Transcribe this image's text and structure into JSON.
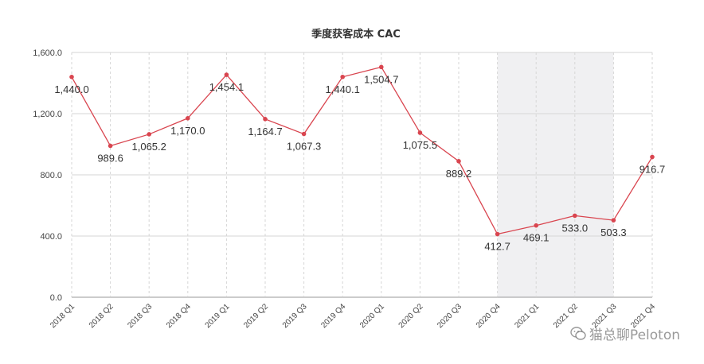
{
  "watermark": {
    "text": "猫总聊Peloton",
    "icon": "wechat-icon"
  },
  "colors": {
    "line": "#d9454f",
    "band": "#f0f0f2",
    "grid": "#d6d6d6",
    "axis": "#999999"
  },
  "chart_data": {
    "type": "line",
    "title": "季度获客成本 CAC",
    "xlabel": "",
    "ylabel": "",
    "ylim": [
      0,
      1600
    ],
    "yticks": [
      "0.0",
      "400.0",
      "800.0",
      "1,200.0",
      "1,600.0"
    ],
    "ytick_values": [
      0,
      400,
      800,
      1200,
      1600
    ],
    "grid": true,
    "categories": [
      "2018 Q1",
      "2018 Q2",
      "2018 Q3",
      "2018 Q4",
      "2019 Q1",
      "2019 Q2",
      "2019 Q3",
      "2019 Q4",
      "2020 Q1",
      "2020 Q2",
      "2020 Q3",
      "2020 Q4",
      "2021 Q1",
      "2021 Q2",
      "2021 Q3",
      "2021 Q4"
    ],
    "series": [
      {
        "values": [
          1440.0,
          989.6,
          1065.2,
          1170.0,
          1454.1,
          1164.7,
          1067.3,
          1440.1,
          1504.7,
          1075.5,
          889.2,
          412.7,
          469.1,
          533.0,
          503.3,
          916.7
        ],
        "labels": [
          "1,440.0",
          "989.6",
          "1,065.2",
          "1,170.0",
          "1,454.1",
          "1,164.7",
          "1,067.3",
          "1,440.1",
          "1,504.7",
          "1,075.5",
          "889.2",
          "412.7",
          "469.1",
          "533.0",
          "503.3",
          "916.7"
        ]
      }
    ],
    "shaded_range": [
      "2020 Q4",
      "2021 Q3"
    ]
  }
}
